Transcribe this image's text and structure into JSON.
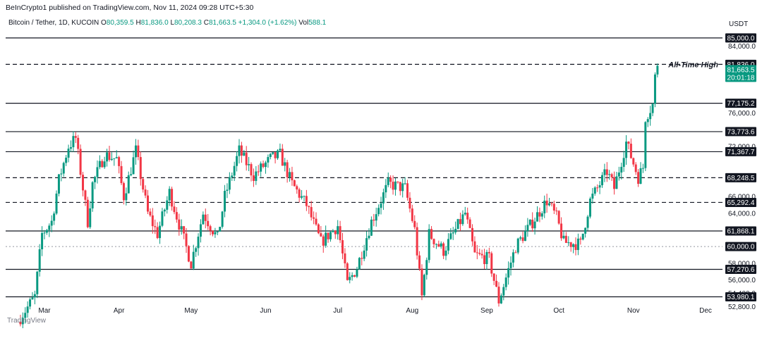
{
  "header": {
    "publisher": "BeInCrypto1 published on TradingView.com, Nov 11, 2024 09:28 UTC+5:30"
  },
  "symbol": {
    "name": "Bitcoin / Tether, 1D, KUCOIN",
    "open_label": "O",
    "open": "80,359.5",
    "high_label": "H",
    "high": "81,836.0",
    "low_label": "L",
    "low": "80,208.3",
    "close_label": "C",
    "close": "81,663.5",
    "change": "+1,304.0 (+1.62%)",
    "vol_label": "Vol",
    "vol": "588.1"
  },
  "unit": "USDT",
  "watermark": "TradingView",
  "colors": {
    "up": "#089981",
    "down": "#f23645",
    "line": "#131722",
    "accent": "#089981"
  },
  "chart_data": {
    "type": "candlestick",
    "title": "Bitcoin / Tether, 1D, KUCOIN",
    "ylim": [
      52000,
      86000
    ],
    "y_ticks": [
      "84,000.0",
      "76,000.0",
      "72,000.0",
      "66,000.0",
      "64,000.0",
      "58,000.0",
      "56,000.0",
      "54,400.0",
      "52,800.0"
    ],
    "y_tick_values": [
      84000,
      76000,
      72000,
      66000,
      64000,
      58000,
      56000,
      54400,
      52800
    ],
    "x_tick_labels": [
      "Mar",
      "Apr",
      "May",
      "Jun",
      "Jul",
      "Aug",
      "Sep",
      "Oct",
      "Nov",
      "Dec"
    ],
    "levels": [
      {
        "value": 85000.0,
        "label": "85,000.0",
        "style": "solid"
      },
      {
        "value": 81836.0,
        "label": "81,836.0",
        "style": "dashed",
        "annotation": "All-Time High"
      },
      {
        "value": 77175.2,
        "label": "77,175.2",
        "style": "solid"
      },
      {
        "value": 73773.6,
        "label": "73,773.6",
        "style": "solid"
      },
      {
        "value": 71367.7,
        "label": "71,367.7",
        "style": "solid"
      },
      {
        "value": 68248.5,
        "label": "68,248.5",
        "style": "dashed"
      },
      {
        "value": 65292.4,
        "label": "65,292.4",
        "style": "dashed"
      },
      {
        "value": 61868.1,
        "label": "61,868.1",
        "style": "solid"
      },
      {
        "value": 60000.0,
        "label": "60,000.0",
        "style": "dotted"
      },
      {
        "value": 57270.6,
        "label": "57,270.6",
        "style": "solid"
      },
      {
        "value": 53980.1,
        "label": "53,980.1",
        "style": "solid"
      }
    ],
    "last_price": {
      "value": 81663.5,
      "label": "81,663.5",
      "countdown": "20:01:18"
    },
    "anchors": [
      [
        "2024-02-20",
        51500
      ],
      [
        "2024-02-26",
        54000
      ],
      [
        "2024-02-29",
        61500
      ],
      [
        "2024-03-04",
        63000
      ],
      [
        "2024-03-07",
        68000
      ],
      [
        "2024-03-11",
        72000
      ],
      [
        "2024-03-14",
        73000
      ],
      [
        "2024-03-19",
        63000
      ],
      [
        "2024-03-21",
        67500
      ],
      [
        "2024-03-26",
        71000
      ],
      [
        "2024-03-31",
        70500
      ],
      [
        "2024-04-03",
        66000
      ],
      [
        "2024-04-08",
        71500
      ],
      [
        "2024-04-13",
        64000
      ],
      [
        "2024-04-17",
        61500
      ],
      [
        "2024-04-22",
        66500
      ],
      [
        "2024-05-01",
        58000
      ],
      [
        "2024-05-06",
        64000
      ],
      [
        "2024-05-12",
        61000
      ],
      [
        "2024-05-15",
        66000
      ],
      [
        "2024-05-21",
        71500
      ],
      [
        "2024-05-27",
        68500
      ],
      [
        "2024-06-03",
        70500
      ],
      [
        "2024-06-07",
        71000
      ],
      [
        "2024-06-12",
        67500
      ],
      [
        "2024-06-18",
        65000
      ],
      [
        "2024-06-24",
        60500
      ],
      [
        "2024-07-01",
        62500
      ],
      [
        "2024-07-05",
        55500
      ],
      [
        "2024-07-09",
        57500
      ],
      [
        "2024-07-15",
        63000
      ],
      [
        "2024-07-22",
        67500
      ],
      [
        "2024-07-29",
        67000
      ],
      [
        "2024-08-02",
        62000
      ],
      [
        "2024-08-05",
        54000
      ],
      [
        "2024-08-08",
        61500
      ],
      [
        "2024-08-14",
        59500
      ],
      [
        "2024-08-23",
        64000
      ],
      [
        "2024-08-27",
        59000
      ],
      [
        "2024-09-02",
        58500
      ],
      [
        "2024-09-06",
        53500
      ],
      [
        "2024-09-13",
        60000
      ],
      [
        "2024-09-19",
        62500
      ],
      [
        "2024-09-26",
        65500
      ],
      [
        "2024-09-30",
        63500
      ],
      [
        "2024-10-03",
        60500
      ],
      [
        "2024-10-10",
        60300
      ],
      [
        "2024-10-14",
        65500
      ],
      [
        "2024-10-21",
        69000
      ],
      [
        "2024-10-24",
        67000
      ],
      [
        "2024-10-29",
        72500
      ],
      [
        "2024-11-03",
        68300
      ],
      [
        "2024-11-05",
        69500
      ],
      [
        "2024-11-06",
        75500
      ],
      [
        "2024-11-08",
        76500
      ],
      [
        "2024-11-09",
        77000
      ],
      [
        "2024-11-10",
        80300
      ],
      [
        "2024-11-11",
        81663.5
      ]
    ]
  }
}
